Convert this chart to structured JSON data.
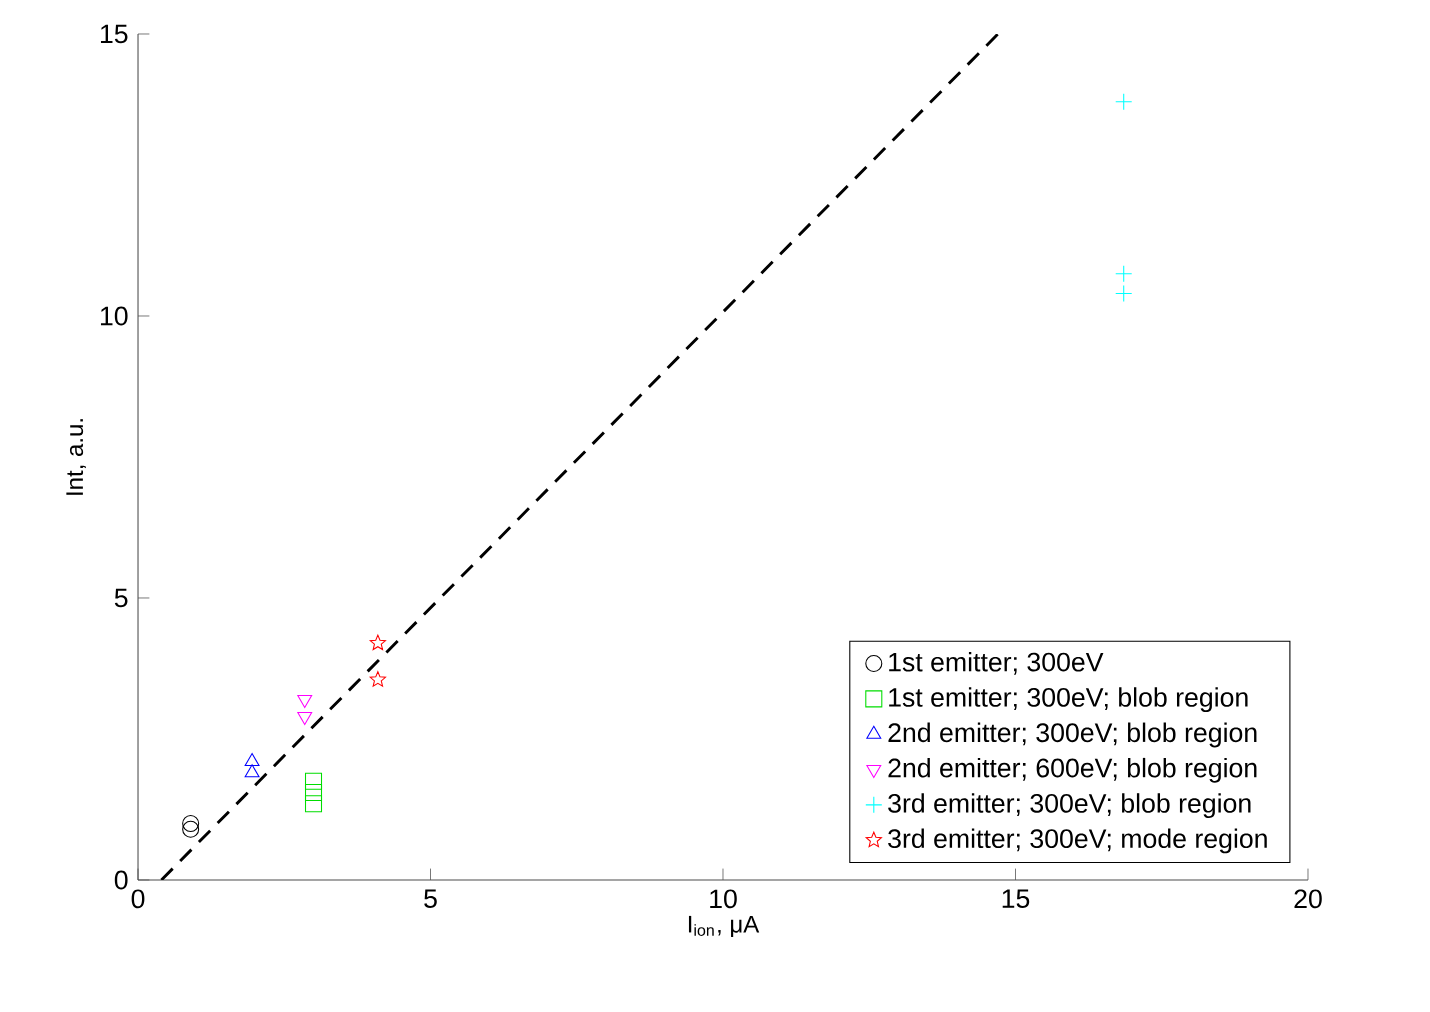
{
  "chart_data": {
    "type": "scatter",
    "xlabel": "I$_{ion}$, μA",
    "ylabel": "Int, a.u.",
    "xlim": [
      0,
      20
    ],
    "ylim": [
      0,
      15
    ],
    "xticks": [
      0,
      5,
      10,
      15,
      20
    ],
    "yticks": [
      0,
      5,
      10,
      15
    ],
    "grid": false,
    "legend": "bottom right",
    "series": [
      {
        "name": "1st emitter; 300eV",
        "color": "#000000",
        "marker": "circle",
        "x": [
          0.9,
          0.9
        ],
        "values": [
          1.0,
          0.9
        ]
      },
      {
        "name": "1st emitter; 300eV; blob region",
        "color": "#00dd00",
        "marker": "square",
        "x": [
          3.0,
          3.0,
          3.0
        ],
        "values": [
          1.75,
          1.55,
          1.35
        ]
      },
      {
        "name": "2nd emitter; 300eV; blob region",
        "color": "#0000ff",
        "marker": "triangle",
        "x": [
          1.95,
          1.95
        ],
        "values": [
          2.1,
          1.9
        ]
      },
      {
        "name": "2nd emitter; 600eV; blob region",
        "color": "#ff00ff",
        "marker": "triangle-down",
        "x": [
          2.85,
          2.85
        ],
        "values": [
          3.2,
          2.9
        ]
      },
      {
        "name": "3rd emitter; 300eV; blob region",
        "color": "#00ffff",
        "marker": "cross",
        "x": [
          16.85,
          16.85,
          16.85
        ],
        "values": [
          13.8,
          10.75,
          10.4
        ]
      },
      {
        "name": "3rd emitter; 300eV; mode region",
        "color": "#ff0000",
        "marker": "star",
        "x": [
          4.1,
          4.1
        ],
        "values": [
          4.2,
          3.55
        ]
      },
      {
        "type": "line",
        "color": "#000000",
        "line_style": "dashed",
        "marker": "none",
        "x": [
          0.4,
          14.7
        ],
        "values": [
          0,
          15
        ]
      }
    ]
  }
}
